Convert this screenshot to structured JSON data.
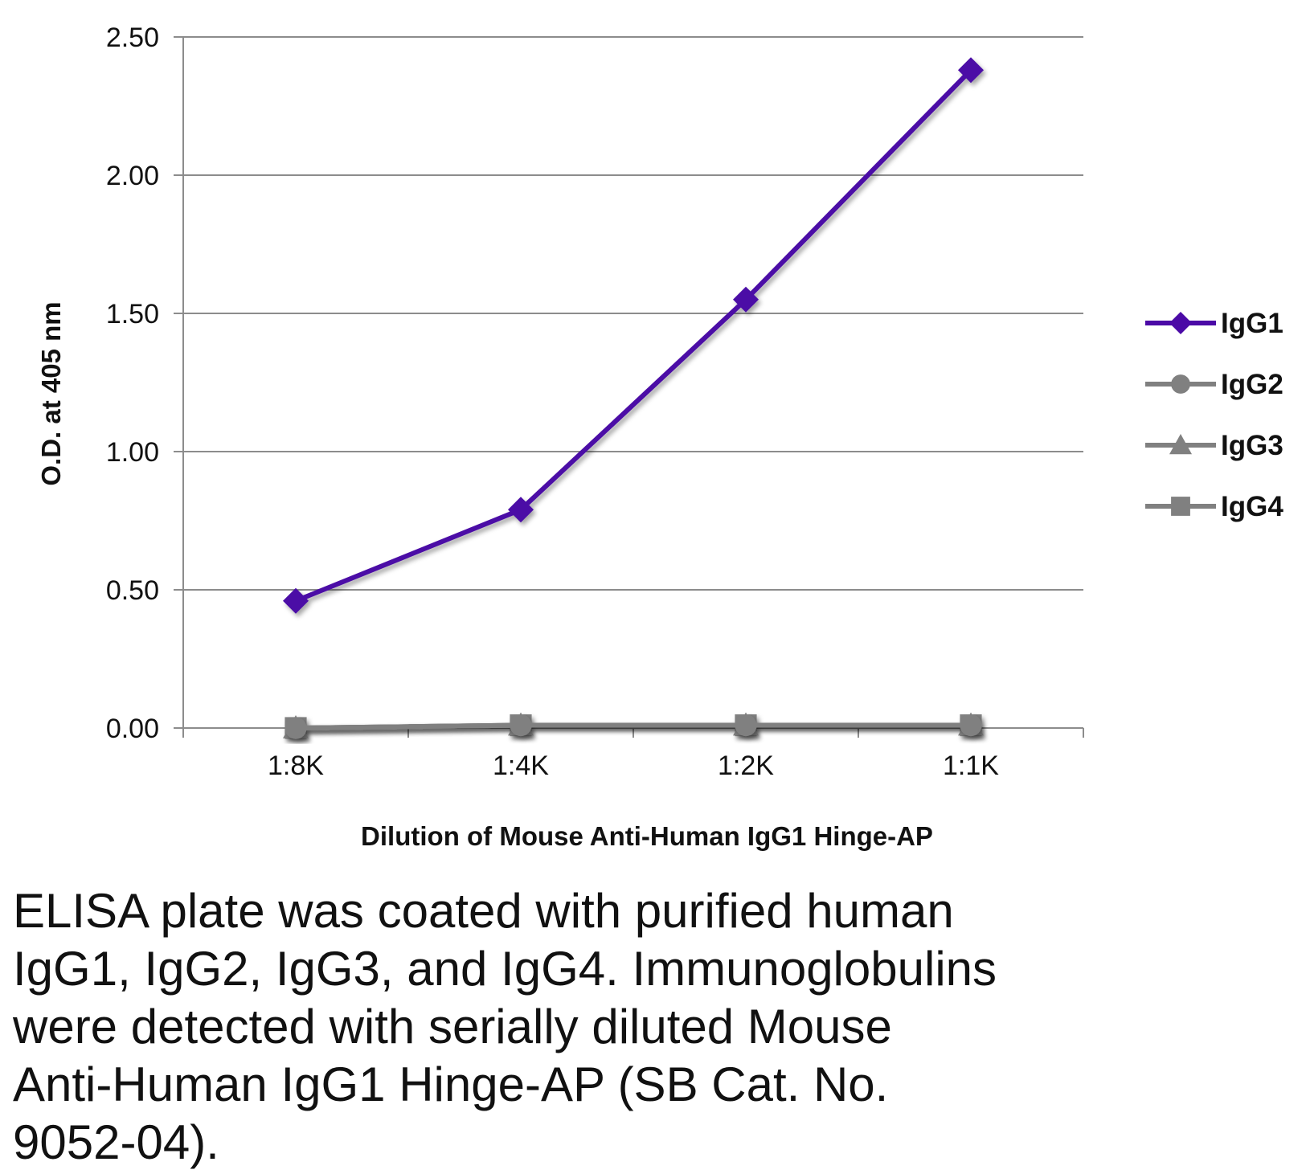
{
  "chart_data": {
    "type": "line",
    "categories": [
      "1:8K",
      "1:4K",
      "1:2K",
      "1:1K"
    ],
    "series": [
      {
        "name": "IgG1",
        "values": [
          0.46,
          0.79,
          1.55,
          2.38
        ],
        "color": "#4B0AA6",
        "marker": "diamond"
      },
      {
        "name": "IgG2",
        "values": [
          0.0,
          0.01,
          0.01,
          0.01
        ],
        "color": "#808080",
        "marker": "circle"
      },
      {
        "name": "IgG3",
        "values": [
          0.0,
          0.01,
          0.01,
          0.01
        ],
        "color": "#808080",
        "marker": "triangle"
      },
      {
        "name": "IgG4",
        "values": [
          0.0,
          0.01,
          0.01,
          0.01
        ],
        "color": "#808080",
        "marker": "square"
      }
    ],
    "xlabel": "Dilution of Mouse Anti-Human IgG1 Hinge-AP",
    "ylabel": "O.D. at 405 nm",
    "ylim": [
      0,
      2.5
    ],
    "yticks": [
      "0.00",
      "0.50",
      "1.00",
      "1.50",
      "2.00",
      "2.50"
    ],
    "grid": true,
    "legend_position": "right"
  },
  "caption": "ELISA plate was coated with purified human\nIgG1, IgG2, IgG3, and IgG4.  Immunoglobulins\nwere detected with serially diluted Mouse\nAnti-Human IgG1 Hinge-AP (SB Cat. No.\n9052-04)."
}
